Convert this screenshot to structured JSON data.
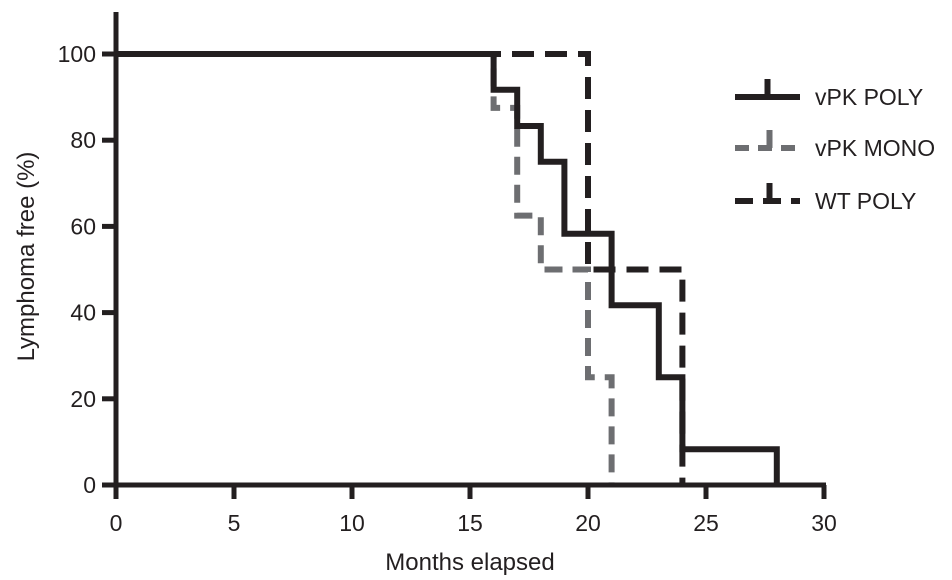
{
  "chart_data": {
    "type": "line",
    "step": true,
    "title": "",
    "xlabel": "Months elapsed",
    "ylabel": "Lymphoma free (%)",
    "xlim": [
      0,
      30
    ],
    "ylim": [
      0,
      100
    ],
    "xticks": [
      0,
      5,
      10,
      15,
      20,
      25,
      30
    ],
    "yticks": [
      0,
      20,
      40,
      60,
      80,
      100
    ],
    "grid": false,
    "legend_position": "right",
    "series": [
      {
        "name": "vPK POLY",
        "color": "#231f20",
        "dash": "solid",
        "points": [
          [
            0,
            100
          ],
          [
            16,
            100
          ],
          [
            16,
            91.7
          ],
          [
            17,
            91.7
          ],
          [
            17,
            83.3
          ],
          [
            18,
            83.3
          ],
          [
            18,
            75
          ],
          [
            19,
            75
          ],
          [
            19,
            58.3
          ],
          [
            21,
            58.3
          ],
          [
            21,
            41.7
          ],
          [
            23,
            41.7
          ],
          [
            23,
            25
          ],
          [
            24,
            25
          ],
          [
            24,
            8.3
          ],
          [
            28,
            8.3
          ],
          [
            28,
            0
          ]
        ]
      },
      {
        "name": "vPK MONO",
        "color": "#6d6e71",
        "dash": "dashed",
        "points": [
          [
            0,
            100
          ],
          [
            16,
            100
          ],
          [
            16,
            87.5
          ],
          [
            17,
            87.5
          ],
          [
            17,
            62.5
          ],
          [
            18,
            62.5
          ],
          [
            18,
            50
          ],
          [
            20,
            50
          ],
          [
            20,
            25
          ],
          [
            21,
            25
          ],
          [
            21,
            0
          ]
        ]
      },
      {
        "name": "WT POLY",
        "color": "#231f20",
        "dash": "dashed",
        "points": [
          [
            0,
            100
          ],
          [
            20,
            100
          ],
          [
            20,
            50
          ],
          [
            24,
            50
          ],
          [
            24,
            0
          ]
        ]
      }
    ]
  }
}
